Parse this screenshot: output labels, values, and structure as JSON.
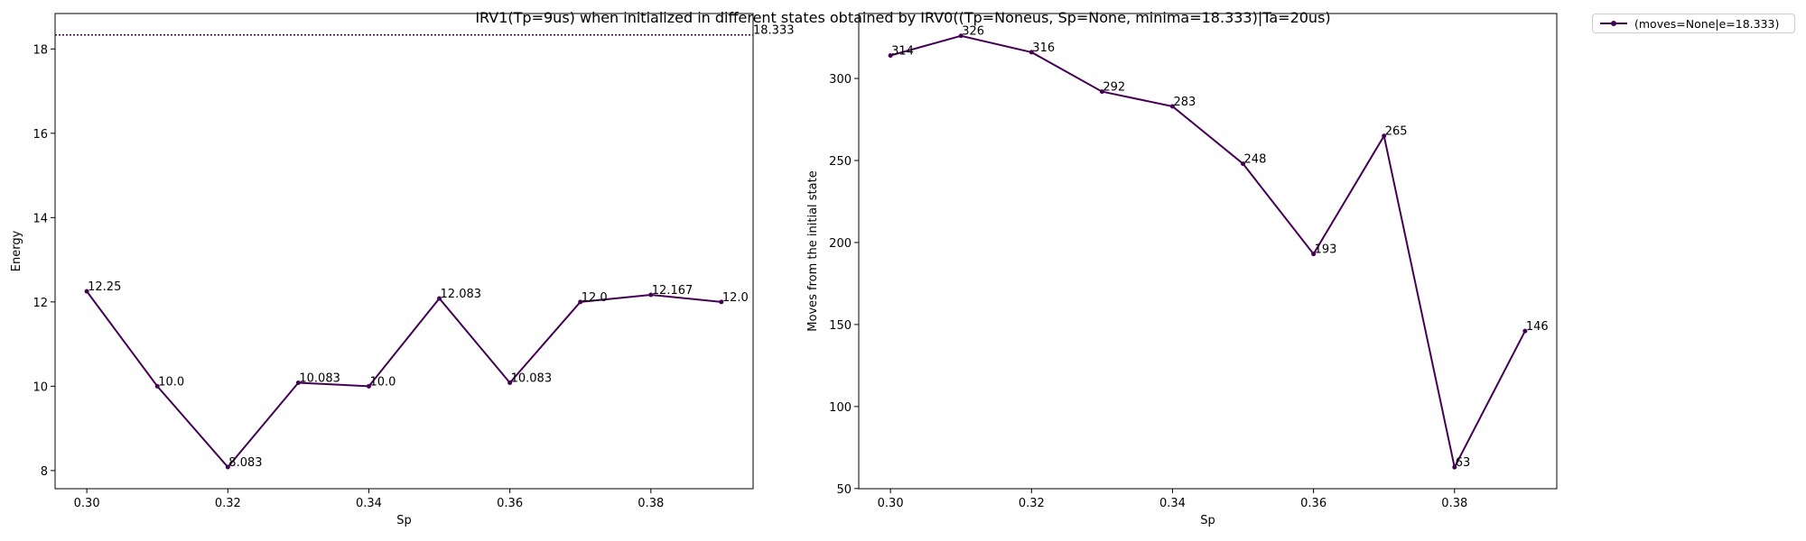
{
  "figure": {
    "suptitle": "IRV1(Tp=9us) when initialized in different states obtained by IRV0((Tp=Noneus, Sp=None, minima=18.333)|Ta=20us)",
    "legend_label": "(moves=None|e=18.333)",
    "line_color": "#440154"
  },
  "chart_data": [
    {
      "type": "line",
      "xlabel": "Sp",
      "ylabel": "Energy",
      "x": [
        0.3,
        0.31,
        0.32,
        0.33,
        0.34,
        0.35,
        0.36,
        0.37,
        0.38,
        0.39
      ],
      "series": [
        {
          "name": "(moves=None|e=18.333)",
          "values": [
            12.25,
            10.0,
            8.083,
            10.083,
            10.0,
            12.083,
            10.083,
            12.0,
            12.167,
            12.0
          ],
          "point_labels": [
            "12.25",
            "10.0",
            "8.083",
            "10.083",
            "10.0",
            "12.083",
            "10.083",
            "12.0",
            "12.167",
            "12.0"
          ]
        }
      ],
      "reference_line": {
        "value": 18.333,
        "label": "18.333",
        "style": "dotted"
      },
      "xlim": [
        0.2955,
        0.3945
      ],
      "ylim": [
        7.57,
        18.84
      ],
      "xticks": [
        0.3,
        0.32,
        0.34,
        0.36,
        0.38
      ],
      "xtick_labels": [
        "0.30",
        "0.32",
        "0.34",
        "0.36",
        "0.38"
      ],
      "yticks": [
        8,
        10,
        12,
        14,
        16,
        18
      ],
      "ytick_labels": [
        "8",
        "10",
        "12",
        "14",
        "16",
        "18"
      ],
      "grid": false
    },
    {
      "type": "line",
      "xlabel": "Sp",
      "ylabel": "Moves from the initial state",
      "x": [
        0.3,
        0.31,
        0.32,
        0.33,
        0.34,
        0.35,
        0.36,
        0.37,
        0.38,
        0.39
      ],
      "series": [
        {
          "name": "(moves=None|e=18.333)",
          "values": [
            314,
            326,
            316,
            292,
            283,
            248,
            193,
            265,
            63,
            146
          ],
          "point_labels": [
            "314",
            "326",
            "316",
            "292",
            "283",
            "248",
            "193",
            "265",
            "63",
            "146"
          ]
        }
      ],
      "xlim": [
        0.2955,
        0.3945
      ],
      "ylim": [
        49.9,
        339.6
      ],
      "xticks": [
        0.3,
        0.32,
        0.34,
        0.36,
        0.38
      ],
      "xtick_labels": [
        "0.30",
        "0.32",
        "0.34",
        "0.36",
        "0.38"
      ],
      "yticks": [
        50,
        100,
        150,
        200,
        250,
        300
      ],
      "ytick_labels": [
        "50",
        "100",
        "150",
        "200",
        "250",
        "300"
      ],
      "grid": false
    }
  ]
}
